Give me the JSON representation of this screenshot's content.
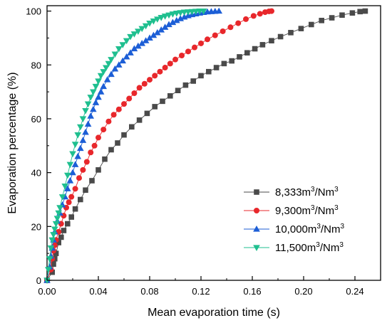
{
  "chart_data": {
    "type": "scatter",
    "xlabel": "Mean evaporation time (s)",
    "ylabel": "Evaporation percentage (%)",
    "xlim": [
      0,
      0.26
    ],
    "ylim": [
      0,
      102
    ],
    "xticks": [
      0.0,
      0.04,
      0.08,
      0.12,
      0.16,
      0.2,
      0.24
    ],
    "xtick_labels": [
      "0.00",
      "0.04",
      "0.08",
      "0.12",
      "0.16",
      "0.20",
      "0.24"
    ],
    "yticks": [
      0,
      20,
      40,
      60,
      80,
      100
    ],
    "ytick_labels": [
      "0",
      "20",
      "40",
      "60",
      "80",
      "100"
    ],
    "grid": false,
    "legend_position": "bottom-right",
    "series": [
      {
        "label_base": "8,333m",
        "label_mid": "/Nm",
        "color": "#4a4a4a",
        "marker": "square",
        "x": [
          0.0,
          0.004,
          0.005,
          0.006,
          0.007,
          0.009,
          0.011,
          0.013,
          0.016,
          0.019,
          0.022,
          0.026,
          0.03,
          0.035,
          0.04,
          0.045,
          0.05,
          0.055,
          0.06,
          0.066,
          0.072,
          0.078,
          0.084,
          0.09,
          0.096,
          0.102,
          0.108,
          0.114,
          0.12,
          0.126,
          0.132,
          0.138,
          0.144,
          0.15,
          0.156,
          0.162,
          0.168,
          0.175,
          0.182,
          0.19,
          0.198,
          0.206,
          0.214,
          0.222,
          0.23,
          0.238,
          0.244,
          0.248
        ],
        "y": [
          0.0,
          3.0,
          6.0,
          8.0,
          10.0,
          14.0,
          16.0,
          18.5,
          21.0,
          23.5,
          26.5,
          30.0,
          33.5,
          37.0,
          41.0,
          45.0,
          48.5,
          51.0,
          54.0,
          57.0,
          59.5,
          62.0,
          64.5,
          66.5,
          68.5,
          70.5,
          72.5,
          74.0,
          76.0,
          77.5,
          79.0,
          80.5,
          81.5,
          83.0,
          84.5,
          86.0,
          87.5,
          89.0,
          90.5,
          92.0,
          93.5,
          95.0,
          96.5,
          97.5,
          98.5,
          99.3,
          99.8,
          100.0
        ]
      },
      {
        "label_base": "9,300m",
        "label_mid": "/Nm",
        "color": "#e8272b",
        "marker": "circle",
        "x": [
          0.0,
          0.003,
          0.004,
          0.005,
          0.006,
          0.007,
          0.009,
          0.011,
          0.013,
          0.015,
          0.017,
          0.019,
          0.022,
          0.025,
          0.028,
          0.031,
          0.034,
          0.037,
          0.04,
          0.044,
          0.048,
          0.052,
          0.056,
          0.06,
          0.064,
          0.068,
          0.072,
          0.076,
          0.08,
          0.084,
          0.088,
          0.092,
          0.096,
          0.1,
          0.105,
          0.11,
          0.115,
          0.12,
          0.125,
          0.131,
          0.137,
          0.143,
          0.149,
          0.155,
          0.161,
          0.166,
          0.17,
          0.173,
          0.175
        ],
        "y": [
          0.0,
          4.0,
          8.0,
          11.0,
          13.0,
          15.0,
          18.0,
          21.0,
          24.0,
          27.0,
          29.0,
          31.0,
          34.0,
          38.0,
          41.0,
          44.0,
          47.5,
          50.0,
          53.0,
          56.0,
          59.0,
          61.5,
          63.5,
          65.5,
          67.5,
          69.5,
          71.5,
          73.0,
          74.5,
          76.0,
          77.5,
          79.0,
          80.5,
          82.0,
          83.5,
          85.0,
          86.5,
          88.0,
          89.5,
          91.0,
          92.5,
          94.0,
          95.5,
          97.0,
          98.2,
          99.0,
          99.6,
          99.9,
          100.0
        ]
      },
      {
        "label_base": "10,000m",
        "label_mid": "/Nm",
        "color": "#1c5ed6",
        "marker": "triangle-up",
        "x": [
          0.0,
          0.002,
          0.003,
          0.004,
          0.005,
          0.006,
          0.008,
          0.01,
          0.012,
          0.014,
          0.016,
          0.018,
          0.02,
          0.022,
          0.024,
          0.026,
          0.028,
          0.03,
          0.032,
          0.034,
          0.036,
          0.038,
          0.04,
          0.042,
          0.044,
          0.047,
          0.05,
          0.053,
          0.056,
          0.059,
          0.062,
          0.065,
          0.068,
          0.071,
          0.074,
          0.077,
          0.08,
          0.083,
          0.086,
          0.089,
          0.092,
          0.095,
          0.098,
          0.101,
          0.104,
          0.107,
          0.11,
          0.113,
          0.116,
          0.119,
          0.122,
          0.125,
          0.128,
          0.131,
          0.134
        ],
        "y": [
          0.0,
          5.0,
          9.0,
          12.0,
          15.0,
          18.0,
          22.0,
          25.0,
          28.0,
          31.0,
          34.0,
          37.0,
          40.0,
          43.0,
          46.0,
          49.0,
          52.0,
          55.0,
          58.0,
          61.0,
          63.5,
          66.0,
          68.0,
          70.0,
          72.0,
          74.5,
          76.5,
          78.5,
          80.0,
          81.5,
          83.0,
          84.5,
          86.0,
          87.0,
          88.0,
          89.0,
          90.0,
          91.0,
          92.0,
          93.0,
          94.0,
          95.0,
          95.8,
          96.5,
          97.2,
          97.8,
          98.3,
          98.7,
          99.0,
          99.3,
          99.5,
          99.7,
          99.8,
          99.9,
          100.0
        ]
      },
      {
        "label_base": "11,500m",
        "label_mid": "/Nm",
        "color": "#1fbf8f",
        "marker": "triangle-down",
        "x": [
          0.0,
          0.001,
          0.002,
          0.003,
          0.004,
          0.005,
          0.006,
          0.007,
          0.008,
          0.009,
          0.01,
          0.012,
          0.014,
          0.016,
          0.018,
          0.02,
          0.022,
          0.024,
          0.026,
          0.028,
          0.03,
          0.032,
          0.034,
          0.036,
          0.038,
          0.04,
          0.042,
          0.044,
          0.046,
          0.048,
          0.05,
          0.053,
          0.056,
          0.059,
          0.062,
          0.065,
          0.068,
          0.071,
          0.074,
          0.077,
          0.08,
          0.083,
          0.086,
          0.089,
          0.092,
          0.095,
          0.098,
          0.101,
          0.104,
          0.107,
          0.11,
          0.113,
          0.116,
          0.119,
          0.122
        ],
        "y": [
          0.0,
          4.0,
          8.0,
          12.0,
          15.0,
          17.0,
          19.0,
          21.0,
          23.0,
          25.0,
          27.0,
          31.0,
          35.0,
          39.0,
          43.0,
          47.0,
          50.5,
          54.0,
          57.0,
          60.0,
          63.0,
          65.5,
          68.0,
          70.0,
          72.0,
          74.0,
          76.0,
          77.5,
          79.0,
          80.5,
          82.0,
          84.0,
          86.0,
          87.5,
          89.0,
          90.5,
          91.5,
          92.5,
          93.5,
          94.5,
          95.5,
          96.3,
          97.0,
          97.6,
          98.1,
          98.5,
          98.9,
          99.2,
          99.4,
          99.6,
          99.7,
          99.8,
          99.9,
          100.0,
          100.0
        ]
      }
    ]
  }
}
